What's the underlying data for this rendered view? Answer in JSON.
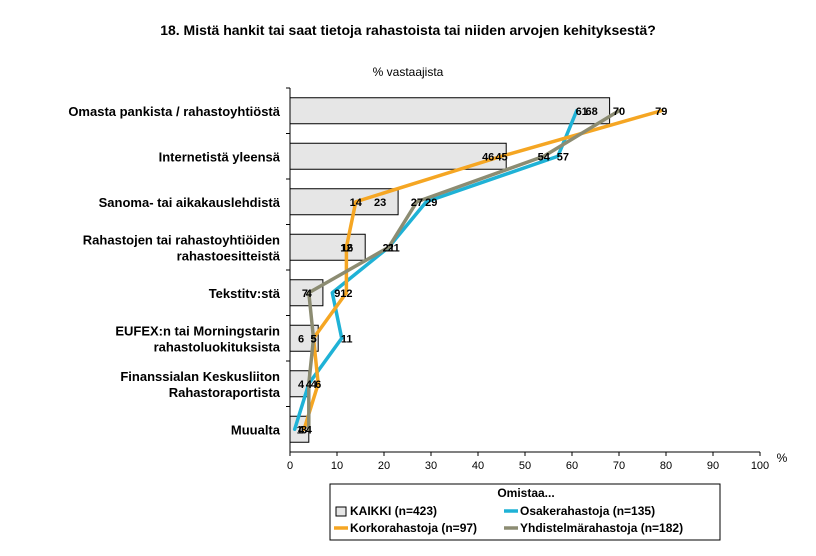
{
  "chart_data": {
    "type": "bar",
    "title": "18. Mistä hankit tai saat tietoja rahastoista tai niiden arvojen kehityksestä?",
    "subtitle": "% vastaajista",
    "x_unit": "%",
    "xlim": [
      0,
      100
    ],
    "x_ticks": [
      "0",
      "10",
      "20",
      "30",
      "40",
      "50",
      "60",
      "70",
      "80",
      "90",
      "100"
    ],
    "categories": [
      [
        "Omasta pankista / rahastoyhtiöstä"
      ],
      [
        "Internetistä yleensä"
      ],
      [
        "Sanoma- tai aikakauslehdistä"
      ],
      [
        "Rahastojen tai rahastoyhtiöiden",
        "rahastoesitteistä"
      ],
      [
        "Tekstitv:stä"
      ],
      [
        "EUFEX:n tai Morningstarin",
        "rahastoluokituksista"
      ],
      [
        "Finanssialan Keskusliiton",
        "Rahastoraportista"
      ],
      [
        "Muualta"
      ]
    ],
    "legend_title": "Omistaa...",
    "series": [
      {
        "name": "KAIKKI  (n=423)",
        "kind": "bar",
        "color": "#e6e6e6",
        "values": [
          68,
          46,
          23,
          16,
          7,
          6,
          4,
          4
        ]
      },
      {
        "name": "Osakerahastoja (n=135)",
        "kind": "line",
        "color": "#1fb2d6",
        "values": [
          61,
          57,
          29,
          21,
          9,
          11,
          4,
          1
        ]
      },
      {
        "name": "Korkorahastoja (n=97)",
        "kind": "line",
        "color": "#f5a623",
        "values": [
          79,
          45,
          14,
          12,
          12,
          5,
          6,
          3
        ]
      },
      {
        "name": "Yhdistelmärahastoja (n=182)",
        "kind": "line",
        "color": "#8c8c72",
        "values": [
          70,
          54,
          27,
          21,
          4,
          5,
          4,
          4
        ]
      }
    ],
    "grid": false,
    "legend_position": "bottom"
  }
}
